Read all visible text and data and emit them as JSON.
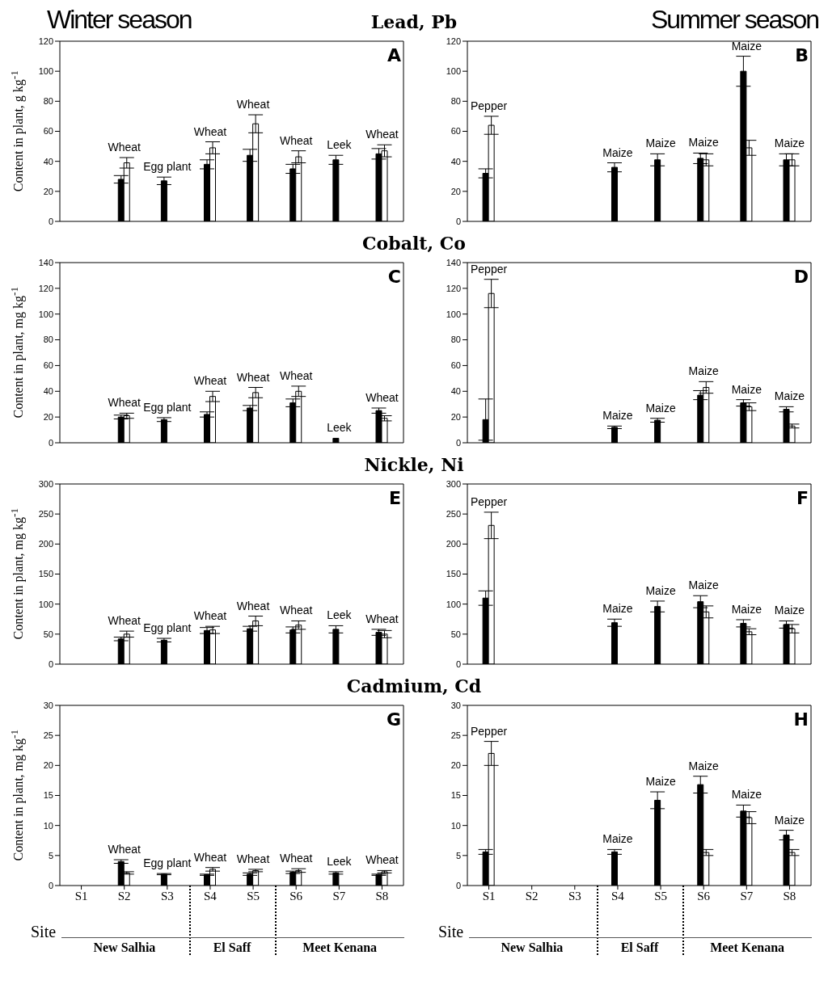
{
  "chart_data": [
    {
      "type": "bar",
      "title": "Lead, Pb",
      "subtitle": "Winter season",
      "ylabel": "Content in plant, g  kg$^{-1}$",
      "categories": [
        null,
        null,
        null,
        null,
        null,
        null,
        null,
        null
      ],
      "tick_labels": "y",
      "ylim": [
        0,
        120
      ],
      "yticks": [
        0,
        20,
        40,
        60,
        80,
        100,
        120
      ],
      "series": [
        {
          "color": "#000000",
          "values": [
            null,
            28,
            27,
            38,
            44,
            35,
            41,
            45
          ],
          "errors": [
            null,
            2.5,
            2.5,
            3,
            4,
            3,
            3,
            3.5
          ]
        },
        {
          "color": "#ffffff",
          "values": [
            null,
            39,
            null,
            49,
            65,
            43,
            null,
            47
          ],
          "errors": [
            null,
            3.5,
            null,
            4,
            6,
            4,
            null,
            4
          ]
        }
      ],
      "annotations": [
        "A",
        "Wheat",
        "Egg plant",
        "Wheat",
        "Wheat",
        "Wheat",
        "Leek",
        "Wheat"
      ]
    },
    {
      "type": "bar",
      "subtitle": "Summer season",
      "categories": [
        null,
        null,
        null,
        null,
        null,
        null,
        null,
        null
      ],
      "tick_labels": "y",
      "ylim": [
        0,
        120
      ],
      "yticks": [
        0,
        20,
        40,
        60,
        80,
        100,
        120
      ],
      "series": [
        {
          "color": "#000000",
          "values": [
            32,
            null,
            null,
            36,
            41,
            42,
            100,
            41
          ],
          "errors": [
            3,
            null,
            null,
            3,
            4,
            3.5,
            10,
            4
          ]
        },
        {
          "color": "#ffffff",
          "values": [
            64,
            null,
            null,
            null,
            null,
            41,
            49,
            41
          ],
          "errors": [
            6,
            null,
            null,
            null,
            null,
            4,
            5,
            4
          ]
        }
      ],
      "annotations": [
        "B",
        "Pepper",
        "Maize",
        "Maize",
        "Maize",
        "Maize",
        "Maize"
      ]
    },
    {
      "type": "bar",
      "title": "Cobalt, Co",
      "ylabel": "Content in plant, mg  kg$^{-1}$",
      "categories": [
        null,
        null,
        null,
        null,
        null,
        null,
        null,
        null
      ],
      "tick_labels": "y",
      "ylim": [
        0,
        140
      ],
      "yticks": [
        0,
        20,
        40,
        60,
        80,
        100,
        120,
        140
      ],
      "series": [
        {
          "color": "#000000",
          "values": [
            null,
            20,
            18,
            22,
            27,
            31,
            3.5,
            25
          ],
          "errors": [
            null,
            1.5,
            1.5,
            2,
            2,
            3,
            null,
            2
          ]
        },
        {
          "color": "#ffffff",
          "values": [
            null,
            21,
            null,
            36,
            39,
            40,
            null,
            19
          ],
          "errors": [
            null,
            2,
            null,
            4,
            4,
            4,
            null,
            2
          ]
        }
      ],
      "annotations": [
        "C",
        "Wheat",
        "Egg plant",
        "Wheat",
        "Wheat",
        "Wheat",
        "Leek",
        "Wheat"
      ]
    },
    {
      "type": "bar",
      "categories": [
        null,
        null,
        null,
        null,
        null,
        null,
        null,
        null
      ],
      "tick_labels": "y",
      "ylim": [
        0,
        140
      ],
      "yticks": [
        0,
        20,
        40,
        60,
        80,
        100,
        120,
        140
      ],
      "series": [
        {
          "color": "#000000",
          "values": [
            18,
            null,
            null,
            12,
            17.5,
            37,
            31,
            26
          ],
          "errors": [
            16,
            null,
            null,
            1,
            1.5,
            3.5,
            2.5,
            2
          ]
        },
        {
          "color": "#ffffff",
          "values": [
            116,
            null,
            null,
            null,
            null,
            43,
            28,
            13
          ],
          "errors": [
            11,
            null,
            null,
            null,
            null,
            4.5,
            3,
            1.5
          ]
        }
      ],
      "annotations": [
        "D",
        "Pepper",
        "Maize",
        "Maize",
        "Maize",
        "Maize",
        "Maize"
      ]
    },
    {
      "type": "bar",
      "title": "Nickle, Ni",
      "ylabel": "Content in plant, mg  kg$^{-1}$",
      "categories": [
        null,
        null,
        null,
        null,
        null,
        null,
        null,
        null
      ],
      "tick_labels": "y",
      "ylim": [
        0,
        300
      ],
      "yticks": [
        0,
        50,
        100,
        150,
        200,
        250,
        300
      ],
      "series": [
        {
          "color": "#000000",
          "values": [
            null,
            42,
            40,
            56,
            59,
            57,
            58,
            53
          ],
          "errors": [
            null,
            3,
            3,
            5,
            4,
            5,
            6,
            5
          ]
        },
        {
          "color": "#ffffff",
          "values": [
            null,
            50,
            null,
            57,
            72,
            65,
            null,
            50
          ],
          "errors": [
            null,
            5,
            null,
            6,
            8,
            7,
            null,
            6
          ]
        }
      ],
      "annotations": [
        "E",
        "Wheat",
        "Egg plant",
        "Wheat",
        "Wheat",
        "Wheat",
        "Leek",
        "Wheat"
      ]
    },
    {
      "type": "bar",
      "categories": [
        null,
        null,
        null,
        null,
        null,
        null,
        null,
        null
      ],
      "tick_labels": "y",
      "ylim": [
        0,
        300
      ],
      "yticks": [
        0,
        50,
        100,
        150,
        200,
        250,
        300
      ],
      "series": [
        {
          "color": "#000000",
          "values": [
            110,
            null,
            null,
            69,
            96,
            104,
            68,
            66
          ],
          "errors": [
            12,
            null,
            null,
            6,
            9,
            10,
            6,
            6
          ]
        },
        {
          "color": "#ffffff",
          "values": [
            231,
            null,
            null,
            null,
            null,
            87,
            54,
            59
          ],
          "errors": [
            22,
            null,
            null,
            null,
            null,
            10,
            5,
            7
          ]
        }
      ],
      "annotations": [
        "F",
        "Pepper",
        "Maize",
        "Maize",
        "Maize",
        "Maize",
        "Maize"
      ]
    },
    {
      "type": "bar",
      "title": "Cadmium, Cd",
      "ylabel": "Content in plant, mg  kg$^{-1}$",
      "xlabel": "Site",
      "categories": [
        "S1",
        "S2",
        "S3",
        "S4",
        "S5",
        "S6",
        "S7",
        "S8"
      ],
      "ylim": [
        0,
        30
      ],
      "yticks": [
        0,
        5,
        10,
        15,
        20,
        25,
        30
      ],
      "series": [
        {
          "color": "#000000",
          "values": [
            null,
            4.0,
            1.9,
            1.8,
            1.9,
            2.2,
            2.1,
            1.8
          ],
          "errors": [
            null,
            0.3,
            0.1,
            0.1,
            0.2,
            0.2,
            0.2,
            0.1
          ]
        },
        {
          "color": "#ffffff",
          "values": [
            null,
            2.1,
            null,
            2.7,
            2.5,
            2.5,
            null,
            2.3
          ],
          "errors": [
            null,
            0.2,
            null,
            0.3,
            0.2,
            0.3,
            null,
            0.2
          ]
        }
      ],
      "annotations": [
        "G",
        "New Salhia",
        "El Saff",
        "Meet Kenana",
        "Wheat",
        "Egg plant",
        "Wheat",
        "Wheat",
        "Wheat",
        "Leek",
        "Wheat"
      ]
    },
    {
      "type": "bar",
      "xlabel": "Site",
      "categories": [
        "S1",
        "S2",
        "S3",
        "S4",
        "S5",
        "S6",
        "S7",
        "S8"
      ],
      "ylim": [
        0,
        30
      ],
      "yticks": [
        0,
        5,
        10,
        15,
        20,
        25,
        30
      ],
      "series": [
        {
          "color": "#000000",
          "values": [
            5.6,
            null,
            null,
            5.6,
            14.2,
            16.8,
            12.4,
            8.4
          ],
          "errors": [
            0.4,
            null,
            null,
            0.4,
            1.4,
            1.4,
            1,
            0.8
          ]
        },
        {
          "color": "#ffffff",
          "values": [
            22,
            null,
            null,
            null,
            null,
            5.5,
            11.3,
            5.5
          ],
          "errors": [
            2,
            null,
            null,
            null,
            null,
            0.5,
            1,
            0.5
          ]
        }
      ],
      "annotations": [
        "H",
        "New Salhia",
        "El Saff",
        "Meet Kenana",
        "Pepper",
        "Maize",
        "Maize",
        "Maize",
        "Maize",
        "Maize"
      ]
    }
  ]
}
